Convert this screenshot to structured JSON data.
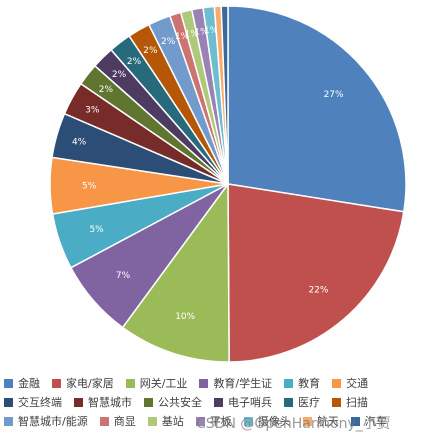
{
  "chart_data": {
    "type": "pie",
    "slices": [
      {
        "name": "金融",
        "value": 27,
        "label": "27%",
        "color": "#4f81bd"
      },
      {
        "name": "家电/家居",
        "value": 22,
        "label": "22%",
        "color": "#c0504d"
      },
      {
        "name": "网关/工业",
        "value": 10,
        "label": "10%",
        "color": "#9bbb59"
      },
      {
        "name": "教育/学生证",
        "value": 7,
        "label": "7%",
        "color": "#8064a2"
      },
      {
        "name": "教育",
        "value": 5,
        "label": "5%",
        "color": "#4bacc6"
      },
      {
        "name": "交通",
        "value": 5,
        "label": "5%",
        "color": "#f79646"
      },
      {
        "name": "交互终端",
        "value": 4,
        "label": "4%",
        "color": "#2c4d75"
      },
      {
        "name": "智慧城市",
        "value": 3,
        "label": "3%",
        "color": "#772c2a"
      },
      {
        "name": "公共安全",
        "value": 2,
        "label": "2%",
        "color": "#5f7530"
      },
      {
        "name": "电子哨兵",
        "value": 2,
        "label": "2%",
        "color": "#4d3b62"
      },
      {
        "name": "医疗",
        "value": 2,
        "label": "2%",
        "color": "#276a7c"
      },
      {
        "name": "扫描",
        "value": 2,
        "label": "2%",
        "color": "#b65708"
      },
      {
        "name": "智慧城市/能源",
        "value": 2,
        "label": "2%",
        "color": "#729aca"
      },
      {
        "name": "商显",
        "value": 1,
        "label": "1%",
        "color": "#cd7371"
      },
      {
        "name": "基站",
        "value": 1,
        "label": "1%",
        "color": "#afc97a"
      },
      {
        "name": "平板",
        "value": 1,
        "label": "1%",
        "color": "#9983b5"
      },
      {
        "name": "摄像头",
        "value": 1,
        "label": "1%",
        "color": "#6fbdd1"
      },
      {
        "name": "航天",
        "value": 0.6,
        "label": "",
        "color": "#f9ab6b"
      },
      {
        "name": "汽车",
        "value": 0.6,
        "label": "",
        "color": "#3a679c"
      }
    ],
    "legend_position": "bottom"
  },
  "watermark": "CSDN @OpenHarmony_小贾"
}
